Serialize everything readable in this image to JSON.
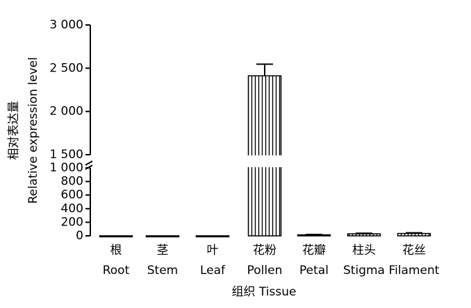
{
  "chart_data": {
    "type": "bar",
    "x_label": "组织 Tissue",
    "y_label": [
      "相对表达量",
      "Relative expression level"
    ],
    "categories": [
      [
        "根",
        "Root"
      ],
      [
        "茎",
        "Stem"
      ],
      [
        "叶",
        "Leaf"
      ],
      [
        "花粉",
        "Pollen"
      ],
      [
        "花瓣",
        "Petal"
      ],
      [
        "柱头",
        "Stigma"
      ],
      [
        "花丝",
        "Filament"
      ]
    ],
    "values": [
      1,
      1,
      1,
      2412,
      15,
      30,
      35
    ],
    "errors": [
      0,
      0,
      0,
      135,
      5,
      8,
      10
    ],
    "color": "#000000",
    "hatch": "vertical",
    "segments": [
      {
        "ylim": [
          0,
          1000
        ],
        "yticks": [
          0,
          200,
          400,
          600,
          800,
          {
            "value": 1000,
            "label": "1 000"
          }
        ]
      },
      {
        "ylim": [
          1500,
          3000
        ],
        "yticks": [
          {
            "value": 1500,
            "label": "1 500"
          },
          {
            "value": 2000,
            "label": "2 000"
          },
          {
            "value": 2500,
            "label": "2 500"
          },
          {
            "value": 3000,
            "label": "3 000"
          }
        ]
      }
    ]
  }
}
